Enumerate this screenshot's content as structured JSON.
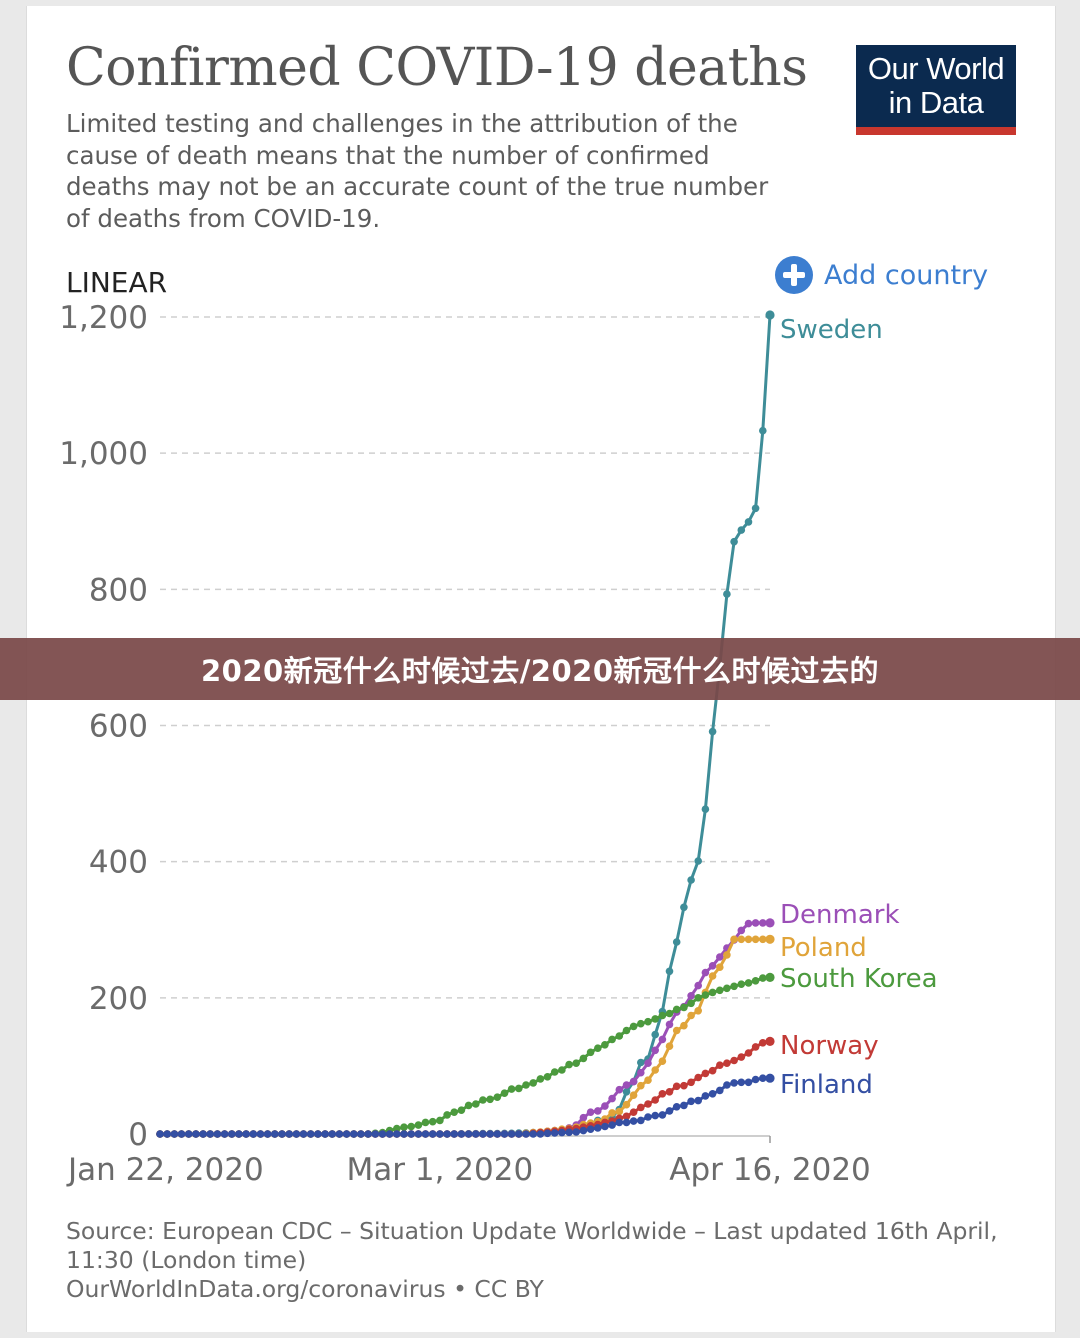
{
  "header": {
    "title": "Confirmed COVID-19 deaths",
    "subtitle": "Limited testing and challenges in the attribution of the cause of death means that the number of confirmed deaths may not be an accurate count of the true number of deaths from COVID-19.",
    "logo_line1": "Our World",
    "logo_line2": "in Data"
  },
  "controls": {
    "add_country_label": "Add country",
    "add_icon": "plus-circle-icon",
    "scale_label": "LINEAR"
  },
  "footer": {
    "source_line1": "Source: European CDC – Situation Update Worldwide – Last updated 16th April,",
    "source_line2": "11:30 (London time)",
    "source_line3": "OurWorldInData.org/coronavirus • CC BY"
  },
  "banner": {
    "text": "2020新冠什么时候过去/2020新冠什么时候过去的"
  },
  "colors": {
    "logo_bg": "#0b2a4f",
    "logo_stripe": "#c8372e",
    "accent": "#3c7ed0",
    "banner_bg": "#7a4848"
  },
  "chart_data": {
    "type": "line",
    "title": "Confirmed COVID-19 deaths",
    "ylim": [
      0,
      1200
    ],
    "y_ticks": [
      0,
      200,
      400,
      600,
      800,
      1000,
      1200
    ],
    "y_tick_labels": [
      "0",
      "200",
      "400",
      "600",
      "800",
      "1,000",
      "1,200"
    ],
    "x_tick_labels": [
      "Jan 22, 2020",
      "Mar 1, 2020",
      "Apr 16, 2020"
    ],
    "x_tick_days": [
      0,
      39,
      85
    ],
    "x_range_days": [
      0,
      85
    ],
    "grid": "horizontal-dashed",
    "legend": "labels at line ends",
    "series": [
      {
        "name": "Sweden",
        "color": "#3e8d98",
        "points": [
          [
            0,
            0
          ],
          [
            40,
            0
          ],
          [
            49,
            1
          ],
          [
            52,
            2
          ],
          [
            55,
            3
          ],
          [
            57,
            7
          ],
          [
            58,
            10
          ],
          [
            59,
            12
          ],
          [
            60,
            15
          ],
          [
            61,
            20
          ],
          [
            62,
            21
          ],
          [
            63,
            25
          ],
          [
            64,
            36
          ],
          [
            65,
            62
          ],
          [
            66,
            77
          ],
          [
            67,
            105
          ],
          [
            68,
            110
          ],
          [
            69,
            146
          ],
          [
            70,
            180
          ],
          [
            71,
            239
          ],
          [
            72,
            282
          ],
          [
            73,
            333
          ],
          [
            74,
            373
          ],
          [
            75,
            401
          ],
          [
            76,
            477
          ],
          [
            77,
            591
          ],
          [
            78,
            687
          ],
          [
            79,
            793
          ],
          [
            80,
            870
          ],
          [
            81,
            887
          ],
          [
            82,
            899
          ],
          [
            83,
            919
          ],
          [
            84,
            1033
          ],
          [
            85,
            1203
          ]
        ]
      },
      {
        "name": "Denmark",
        "color": "#9b4fb7",
        "points": [
          [
            0,
            0
          ],
          [
            50,
            0
          ],
          [
            52,
            1
          ],
          [
            54,
            4
          ],
          [
            56,
            6
          ],
          [
            57,
            9
          ],
          [
            58,
            13
          ],
          [
            59,
            24
          ],
          [
            60,
            32
          ],
          [
            61,
            34
          ],
          [
            62,
            41
          ],
          [
            63,
            52
          ],
          [
            64,
            65
          ],
          [
            65,
            72
          ],
          [
            66,
            77
          ],
          [
            67,
            90
          ],
          [
            68,
            104
          ],
          [
            69,
            123
          ],
          [
            70,
            139
          ],
          [
            71,
            161
          ],
          [
            72,
            179
          ],
          [
            73,
            187
          ],
          [
            74,
            203
          ],
          [
            75,
            218
          ],
          [
            76,
            237
          ],
          [
            77,
            247
          ],
          [
            78,
            260
          ],
          [
            79,
            273
          ],
          [
            80,
            285
          ],
          [
            81,
            299
          ],
          [
            82,
            309
          ],
          [
            83,
            310
          ],
          [
            84,
            310
          ],
          [
            85,
            310
          ]
        ]
      },
      {
        "name": "Poland",
        "color": "#e0a43a",
        "points": [
          [
            0,
            0
          ],
          [
            50,
            0
          ],
          [
            51,
            1
          ],
          [
            53,
            3
          ],
          [
            55,
            5
          ],
          [
            56,
            7
          ],
          [
            57,
            8
          ],
          [
            58,
            10
          ],
          [
            59,
            14
          ],
          [
            60,
            16
          ],
          [
            61,
            18
          ],
          [
            62,
            22
          ],
          [
            63,
            31
          ],
          [
            64,
            33
          ],
          [
            65,
            43
          ],
          [
            66,
            57
          ],
          [
            67,
            71
          ],
          [
            68,
            79
          ],
          [
            69,
            94
          ],
          [
            70,
            107
          ],
          [
            71,
            129
          ],
          [
            72,
            152
          ],
          [
            73,
            159
          ],
          [
            74,
            174
          ],
          [
            75,
            181
          ],
          [
            76,
            208
          ],
          [
            77,
            232
          ],
          [
            78,
            245
          ],
          [
            79,
            263
          ],
          [
            80,
            286
          ],
          [
            81,
            286
          ],
          [
            82,
            286
          ],
          [
            83,
            286
          ],
          [
            84,
            286
          ],
          [
            85,
            286
          ]
        ]
      },
      {
        "name": "South Korea",
        "color": "#4c9a3e",
        "points": [
          [
            0,
            0
          ],
          [
            29,
            0
          ],
          [
            30,
            1
          ],
          [
            31,
            2
          ],
          [
            32,
            5
          ],
          [
            33,
            8
          ],
          [
            34,
            10
          ],
          [
            35,
            11
          ],
          [
            36,
            13
          ],
          [
            37,
            17
          ],
          [
            38,
            18
          ],
          [
            39,
            20
          ],
          [
            40,
            28
          ],
          [
            41,
            32
          ],
          [
            42,
            35
          ],
          [
            43,
            42
          ],
          [
            44,
            44
          ],
          [
            45,
            50
          ],
          [
            46,
            51
          ],
          [
            47,
            54
          ],
          [
            48,
            60
          ],
          [
            49,
            66
          ],
          [
            50,
            67
          ],
          [
            51,
            72
          ],
          [
            52,
            75
          ],
          [
            53,
            81
          ],
          [
            54,
            84
          ],
          [
            55,
            91
          ],
          [
            56,
            94
          ],
          [
            57,
            102
          ],
          [
            58,
            104
          ],
          [
            59,
            111
          ],
          [
            60,
            120
          ],
          [
            61,
            126
          ],
          [
            62,
            131
          ],
          [
            63,
            139
          ],
          [
            64,
            144
          ],
          [
            65,
            152
          ],
          [
            66,
            158
          ],
          [
            67,
            162
          ],
          [
            68,
            165
          ],
          [
            69,
            169
          ],
          [
            70,
            174
          ],
          [
            71,
            177
          ],
          [
            72,
            183
          ],
          [
            73,
            186
          ],
          [
            74,
            192
          ],
          [
            75,
            200
          ],
          [
            76,
            204
          ],
          [
            77,
            208
          ],
          [
            78,
            211
          ],
          [
            79,
            214
          ],
          [
            80,
            217
          ],
          [
            81,
            220
          ],
          [
            82,
            222
          ],
          [
            83,
            225
          ],
          [
            84,
            229
          ],
          [
            85,
            230
          ]
        ]
      },
      {
        "name": "Norway",
        "color": "#c23a36",
        "points": [
          [
            0,
            0
          ],
          [
            51,
            0
          ],
          [
            52,
            1
          ],
          [
            54,
            3
          ],
          [
            56,
            5
          ],
          [
            57,
            7
          ],
          [
            58,
            8
          ],
          [
            59,
            10
          ],
          [
            60,
            12
          ],
          [
            61,
            14
          ],
          [
            62,
            17
          ],
          [
            63,
            19
          ],
          [
            64,
            23
          ],
          [
            65,
            26
          ],
          [
            66,
            32
          ],
          [
            67,
            39
          ],
          [
            68,
            44
          ],
          [
            69,
            50
          ],
          [
            70,
            59
          ],
          [
            71,
            62
          ],
          [
            72,
            70
          ],
          [
            73,
            71
          ],
          [
            74,
            76
          ],
          [
            75,
            83
          ],
          [
            76,
            89
          ],
          [
            77,
            93
          ],
          [
            78,
            101
          ],
          [
            79,
            104
          ],
          [
            80,
            108
          ],
          [
            81,
            113
          ],
          [
            82,
            119
          ],
          [
            83,
            128
          ],
          [
            84,
            134
          ],
          [
            85,
            136
          ]
        ]
      },
      {
        "name": "Finland",
        "color": "#344fa3",
        "points": [
          [
            0,
            0
          ],
          [
            53,
            0
          ],
          [
            54,
            1
          ],
          [
            56,
            2
          ],
          [
            58,
            3
          ],
          [
            59,
            5
          ],
          [
            60,
            7
          ],
          [
            61,
            9
          ],
          [
            62,
            11
          ],
          [
            63,
            13
          ],
          [
            64,
            17
          ],
          [
            65,
            17
          ],
          [
            66,
            19
          ],
          [
            67,
            20
          ],
          [
            68,
            25
          ],
          [
            69,
            27
          ],
          [
            70,
            28
          ],
          [
            71,
            34
          ],
          [
            72,
            40
          ],
          [
            73,
            42
          ],
          [
            74,
            48
          ],
          [
            75,
            49
          ],
          [
            76,
            56
          ],
          [
            77,
            59
          ],
          [
            78,
            64
          ],
          [
            79,
            72
          ],
          [
            80,
            75
          ],
          [
            81,
            76
          ],
          [
            82,
            76
          ],
          [
            83,
            80
          ],
          [
            84,
            82
          ],
          [
            85,
            82
          ]
        ]
      }
    ]
  }
}
